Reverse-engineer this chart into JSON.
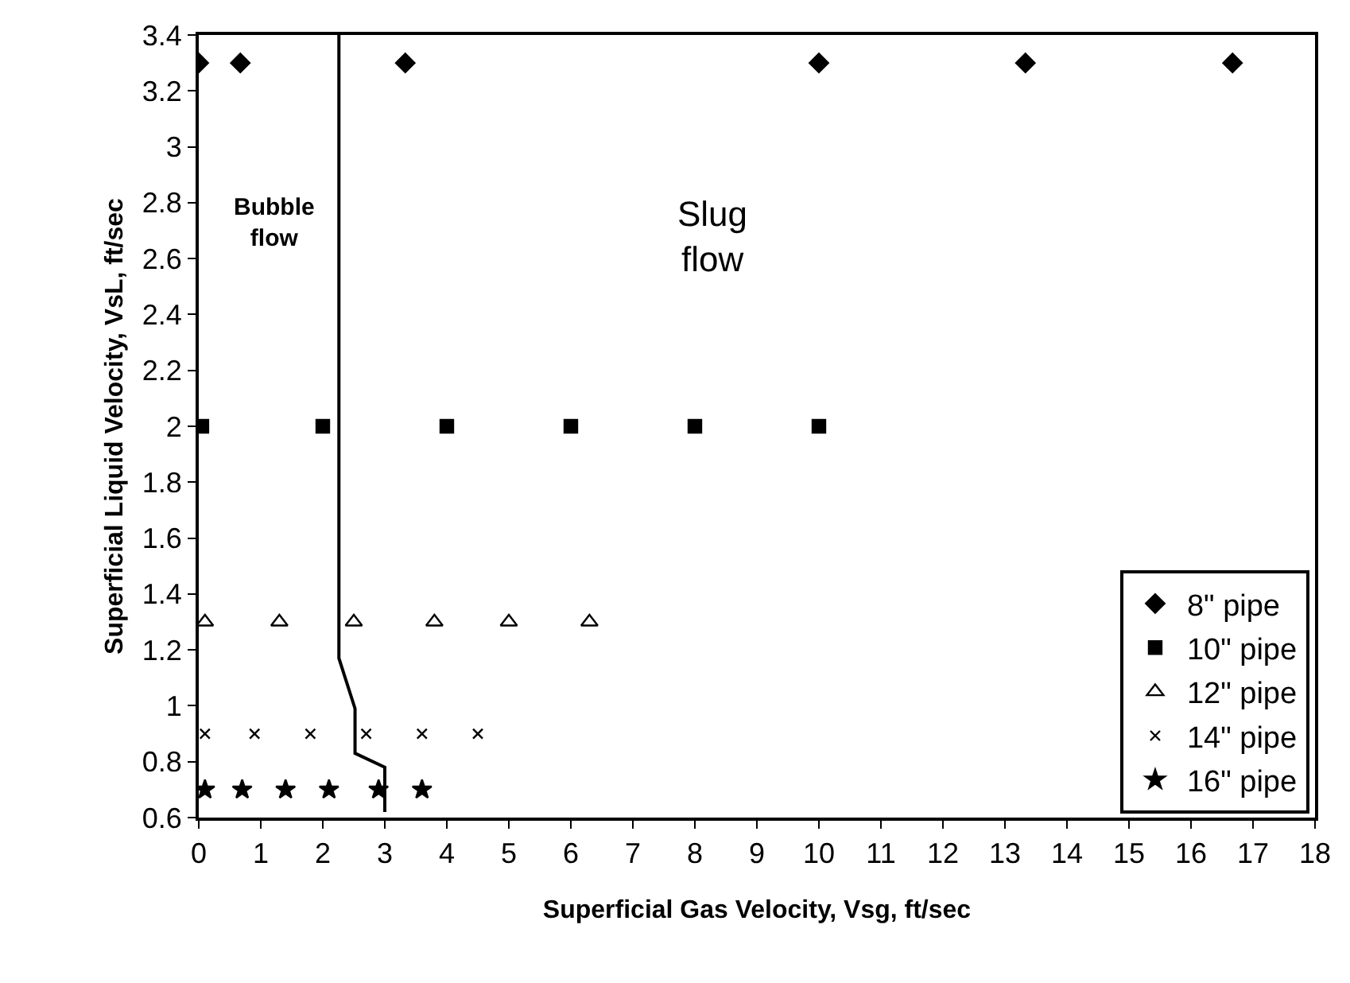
{
  "chart_data": {
    "type": "scatter",
    "xlabel": "Superficial Gas Velocity, Vsg, ft/sec",
    "ylabel": "Superficial Liquid Velocity, VsL, ft/sec",
    "xlim": [
      0,
      18
    ],
    "xticks": [
      0,
      1,
      2,
      3,
      4,
      5,
      6,
      7,
      8,
      9,
      10,
      11,
      12,
      13,
      14,
      15,
      16,
      17,
      18
    ],
    "ylim": [
      0.6,
      3.4
    ],
    "yticks": [
      0.6,
      0.8,
      1,
      1.2,
      1.4,
      1.6,
      1.8,
      2,
      2.2,
      2.4,
      2.6,
      2.8,
      3,
      3.2,
      3.4
    ],
    "grid": false,
    "legend": "bottom right",
    "annotations": [
      "Bubble\nflow",
      "Slug\nflow"
    ],
    "series": [
      {
        "name": "8\" pipe",
        "color": "#000000",
        "marker": "diamond",
        "x": [
          0,
          0.67,
          3.33,
          10,
          13.33,
          16.67
        ],
        "values": [
          3.3,
          3.3,
          3.3,
          3.3,
          3.3,
          3.3
        ]
      },
      {
        "name": "10\" pipe",
        "color": "#000000",
        "marker": "square",
        "x": [
          0.05,
          2,
          4,
          6,
          8,
          10
        ],
        "values": [
          2,
          2,
          2,
          2,
          2,
          2
        ]
      },
      {
        "name": "12\" pipe",
        "color": "#000000",
        "marker": "triangle",
        "x": [
          0.1,
          1.3,
          2.5,
          3.8,
          5.0,
          6.3
        ],
        "values": [
          1.3,
          1.3,
          1.3,
          1.3,
          1.3,
          1.3
        ]
      },
      {
        "name": "14\" pipe",
        "color": "#000000",
        "marker": "cross",
        "x": [
          0.1,
          0.9,
          1.8,
          2.7,
          3.6,
          4.5
        ],
        "values": [
          0.9,
          0.9,
          0.9,
          0.9,
          0.9,
          0.9
        ]
      },
      {
        "name": "16\" pipe",
        "color": "#000000",
        "marker": "star",
        "x": [
          0.1,
          0.7,
          1.4,
          2.1,
          2.9,
          3.6
        ],
        "values": [
          0.7,
          0.7,
          0.7,
          0.7,
          0.7,
          0.7
        ]
      },
      {
        "type": "line",
        "color": "#000000",
        "marker": "none",
        "line_style": "solid",
        "x": [
          2.26,
          2.26,
          2.52,
          2.52,
          3.0,
          3.0
        ],
        "values": [
          3.4,
          1.17,
          0.99,
          0.83,
          0.78,
          0.62
        ]
      }
    ]
  }
}
